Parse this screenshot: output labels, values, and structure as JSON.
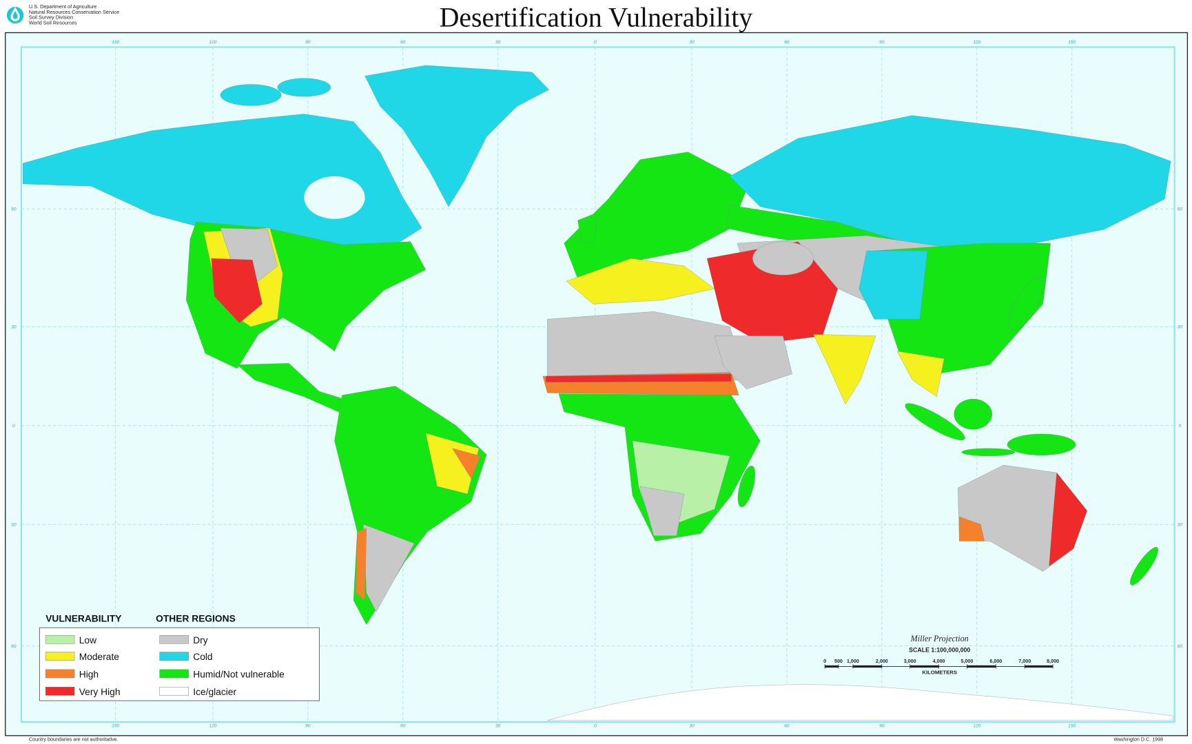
{
  "header": {
    "agency": [
      "U.S. Department of Agriculture",
      "Natural Resources Conservation Service",
      "Soil Survey Division",
      "World Soil Resources"
    ],
    "title": "Desertification Vulnerability"
  },
  "graticule": {
    "longitudes": [
      "150",
      "120",
      "90",
      "60",
      "30",
      "0",
      "30",
      "60",
      "90",
      "120",
      "150"
    ],
    "latitudes": [
      "60",
      "30",
      "0",
      "30",
      "60"
    ]
  },
  "legend": {
    "vulnerability": {
      "heading": "VULNERABILITY",
      "items": [
        "Low",
        "Moderate",
        "High",
        "Very High"
      ]
    },
    "other_regions": {
      "heading": "OTHER REGIONS",
      "items": [
        "Dry",
        "Cold",
        "Humid/Not vulnerable",
        "Ice/glacier"
      ]
    }
  },
  "scale": {
    "projection": "Miller Projection",
    "ratio": "SCALE 1:100,000,000",
    "marks": [
      "0",
      "500",
      "1,000",
      "2,000",
      "3,000",
      "4,000",
      "5,000",
      "6,000",
      "7,000",
      "8,000"
    ],
    "unit": "KILOMETERS"
  },
  "footer": {
    "disclaimer": "Country boundaries are not authoritative.",
    "place_date": "Washington D.C. 1998"
  }
}
